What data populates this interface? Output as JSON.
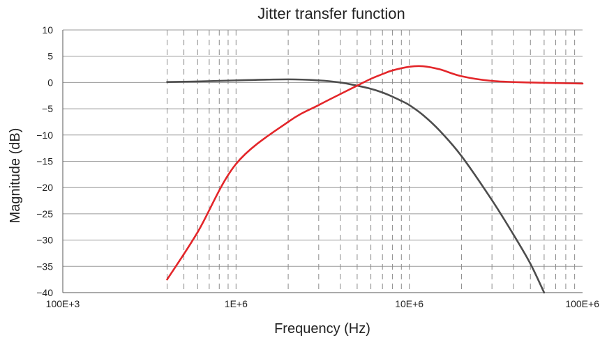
{
  "chart_data": {
    "type": "line",
    "title": "Jitter transfer function",
    "xlabel": "Frequency (Hz)",
    "ylabel": "Magnitude (dB)",
    "x_scale": "log",
    "xlim": [
      100000,
      100000000
    ],
    "ylim": [
      -40,
      10
    ],
    "x_ticks": [
      {
        "value": 100000,
        "label": "100E+3"
      },
      {
        "value": 1000000,
        "label": "1E+6"
      },
      {
        "value": 10000000,
        "label": "10E+6"
      },
      {
        "value": 100000000,
        "label": "100E+6"
      }
    ],
    "y_ticks": [
      {
        "value": 10,
        "label": "10"
      },
      {
        "value": 5,
        "label": "5"
      },
      {
        "value": 0,
        "label": "0"
      },
      {
        "value": -5,
        "label": "−5"
      },
      {
        "value": -10,
        "label": "−10"
      },
      {
        "value": -15,
        "label": "−15"
      },
      {
        "value": -20,
        "label": "−20"
      },
      {
        "value": -25,
        "label": "−25"
      },
      {
        "value": -30,
        "label": "−30"
      },
      {
        "value": -35,
        "label": "−35"
      },
      {
        "value": -40,
        "label": "−40"
      }
    ],
    "grid": {
      "horizontal": "solid",
      "vertical": "dashed",
      "vertical_start": 400000
    },
    "series": [
      {
        "color": "#4d4d4d",
        "x": [
          400000,
          600000,
          1000000,
          2000000,
          3000000,
          4000000,
          5000000,
          6000000,
          7000000,
          8000000,
          9000000,
          10000000,
          12000000,
          15000000,
          20000000,
          30000000,
          40000000,
          50000000,
          60000000
        ],
        "y": [
          0.1,
          0.2,
          0.4,
          0.6,
          0.4,
          0,
          -0.6,
          -1.2,
          -1.9,
          -2.7,
          -3.5,
          -4.3,
          -6.2,
          -9.2,
          -14,
          -22.4,
          -29,
          -34.5,
          -40
        ]
      },
      {
        "color": "#e3262a",
        "x": [
          400000,
          600000,
          1000000,
          2000000,
          3000000,
          4000000,
          5000000,
          6000000,
          7000000,
          8000000,
          10000000,
          12000000,
          15000000,
          20000000,
          30000000,
          50000000,
          100000000
        ],
        "y": [
          -37.5,
          -28.5,
          -15.5,
          -7.5,
          -4.3,
          -2.2,
          -0.6,
          0.7,
          1.6,
          2.3,
          3,
          3.1,
          2.5,
          1.2,
          0.3,
          0,
          -0.2
        ]
      }
    ]
  }
}
